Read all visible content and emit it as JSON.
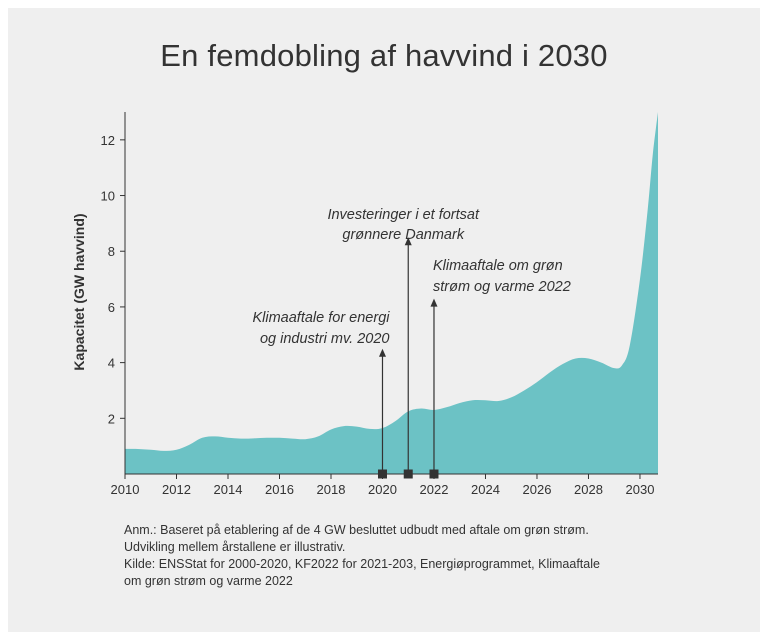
{
  "title": "En femdobling af havvind i 2030",
  "notes": [
    "Anm.: Baseret på etablering af de 4 GW besluttet udbudt med aftale om grøn strøm.",
    "Udvikling mellem årstallene er illustrativ.",
    "Kilde: ENSStat for 2000-2020, KF2022 for 2021-203, Energiøprogrammet, Klimaaftale",
    "om grøn strøm og varme 2022"
  ],
  "colors": {
    "area": "#6cc2c5",
    "text": "#333333",
    "background": "#efefef",
    "marker": "#333333"
  },
  "chart_data": {
    "type": "area",
    "title": "En femdobling af havvind i 2030",
    "xlabel": "",
    "ylabel": "Kapacitet (GW havvind)",
    "xlim": [
      2010,
      2030.7
    ],
    "ylim": [
      0,
      13
    ],
    "xticks": [
      "2010",
      "2012",
      "2014",
      "2016",
      "2018",
      "2020",
      "2022",
      "2024",
      "2026",
      "2028",
      "2030"
    ],
    "yticks": [
      "2",
      "4",
      "6",
      "8",
      "10",
      "12"
    ],
    "grid": false,
    "x": [
      2010,
      2010.5,
      2011,
      2011.5,
      2012,
      2012.5,
      2013,
      2013.5,
      2014,
      2014.5,
      2015,
      2015.5,
      2016,
      2016.5,
      2017,
      2017.5,
      2018,
      2018.5,
      2019,
      2019.5,
      2020,
      2020.5,
      2021,
      2021.5,
      2022,
      2022.5,
      2023,
      2023.5,
      2024,
      2024.5,
      2025,
      2025.5,
      2026,
      2026.5,
      2027,
      2027.5,
      2028,
      2028.5,
      2029,
      2029.3,
      2029.6,
      2030,
      2030.3,
      2030.5,
      2030.7
    ],
    "y": [
      0.9,
      0.9,
      0.87,
      0.83,
      0.87,
      1.05,
      1.3,
      1.35,
      1.3,
      1.27,
      1.28,
      1.3,
      1.3,
      1.27,
      1.25,
      1.35,
      1.6,
      1.72,
      1.7,
      1.62,
      1.65,
      1.9,
      2.25,
      2.35,
      2.3,
      2.4,
      2.55,
      2.65,
      2.65,
      2.62,
      2.75,
      3.0,
      3.3,
      3.65,
      3.95,
      4.15,
      4.15,
      4.0,
      3.8,
      3.9,
      4.6,
      7.0,
      9.5,
      11.5,
      13.0
    ],
    "events": [
      {
        "year": 2020,
        "label": [
          "Klimaaftale for energi",
          "og industri mv. 2020"
        ]
      },
      {
        "year": 2021,
        "label": [
          "Investeringer i et fortsat",
          "grønnere Danmark"
        ]
      },
      {
        "year": 2022,
        "label": [
          "Klimaaftale om grøn",
          "strøm og varme 2022"
        ]
      }
    ]
  }
}
